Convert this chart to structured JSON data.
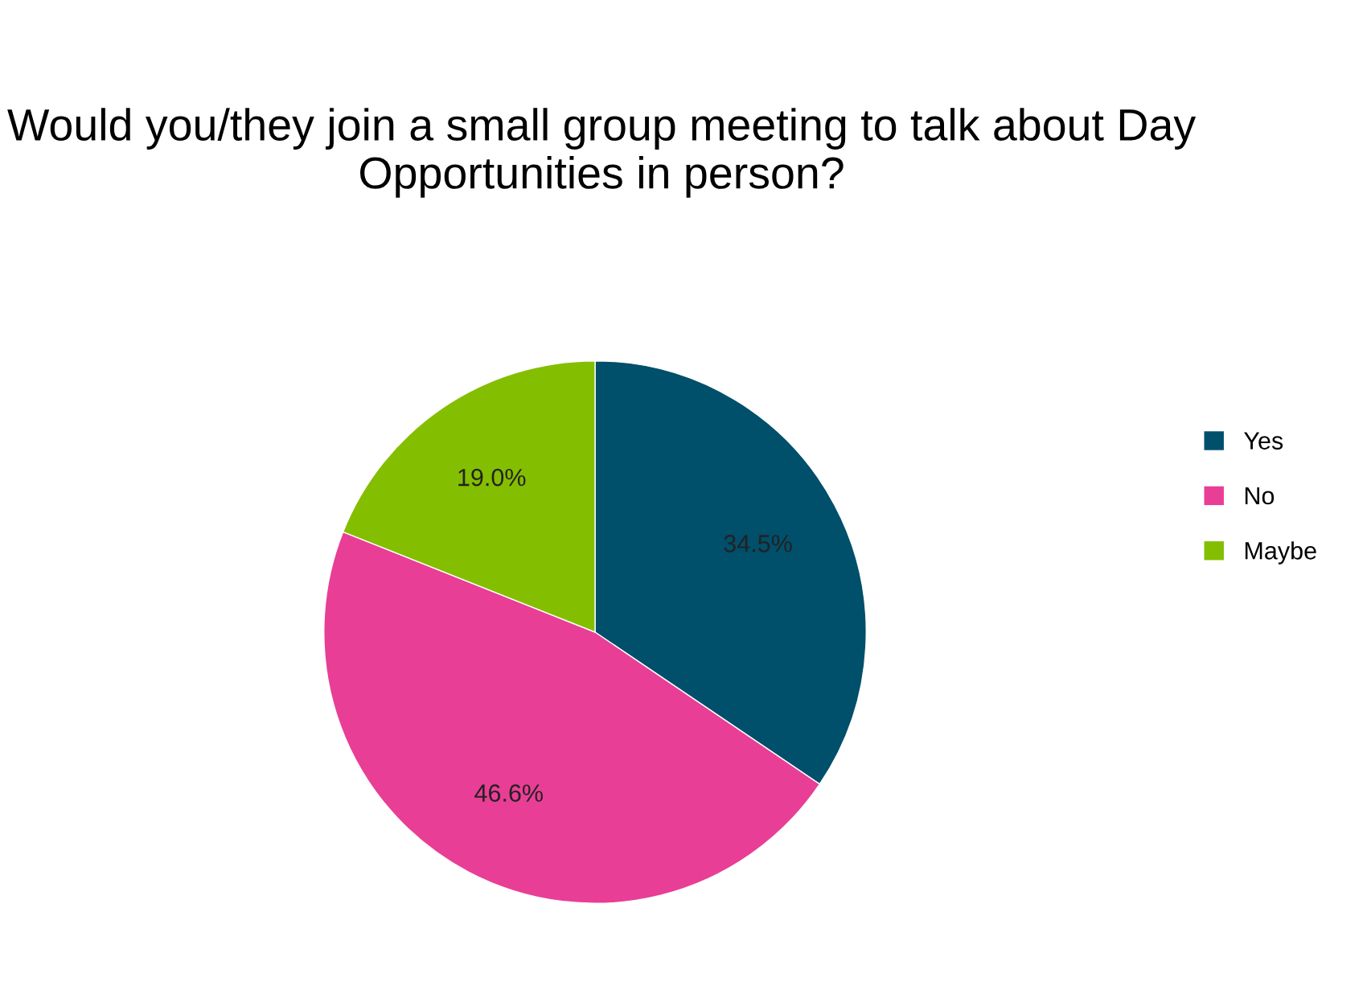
{
  "chart_data": {
    "type": "pie",
    "title": "Would you/they join a small group meeting to talk about Day Opportunities in person?",
    "categories": [
      "Yes",
      "No",
      "Maybe"
    ],
    "values": [
      34.5,
      46.6,
      19.0
    ],
    "value_labels": [
      "34.5%",
      "46.6%",
      "19.0%"
    ],
    "colors": [
      "#004f6b",
      "#e83e96",
      "#84be00"
    ],
    "legend": "right"
  }
}
